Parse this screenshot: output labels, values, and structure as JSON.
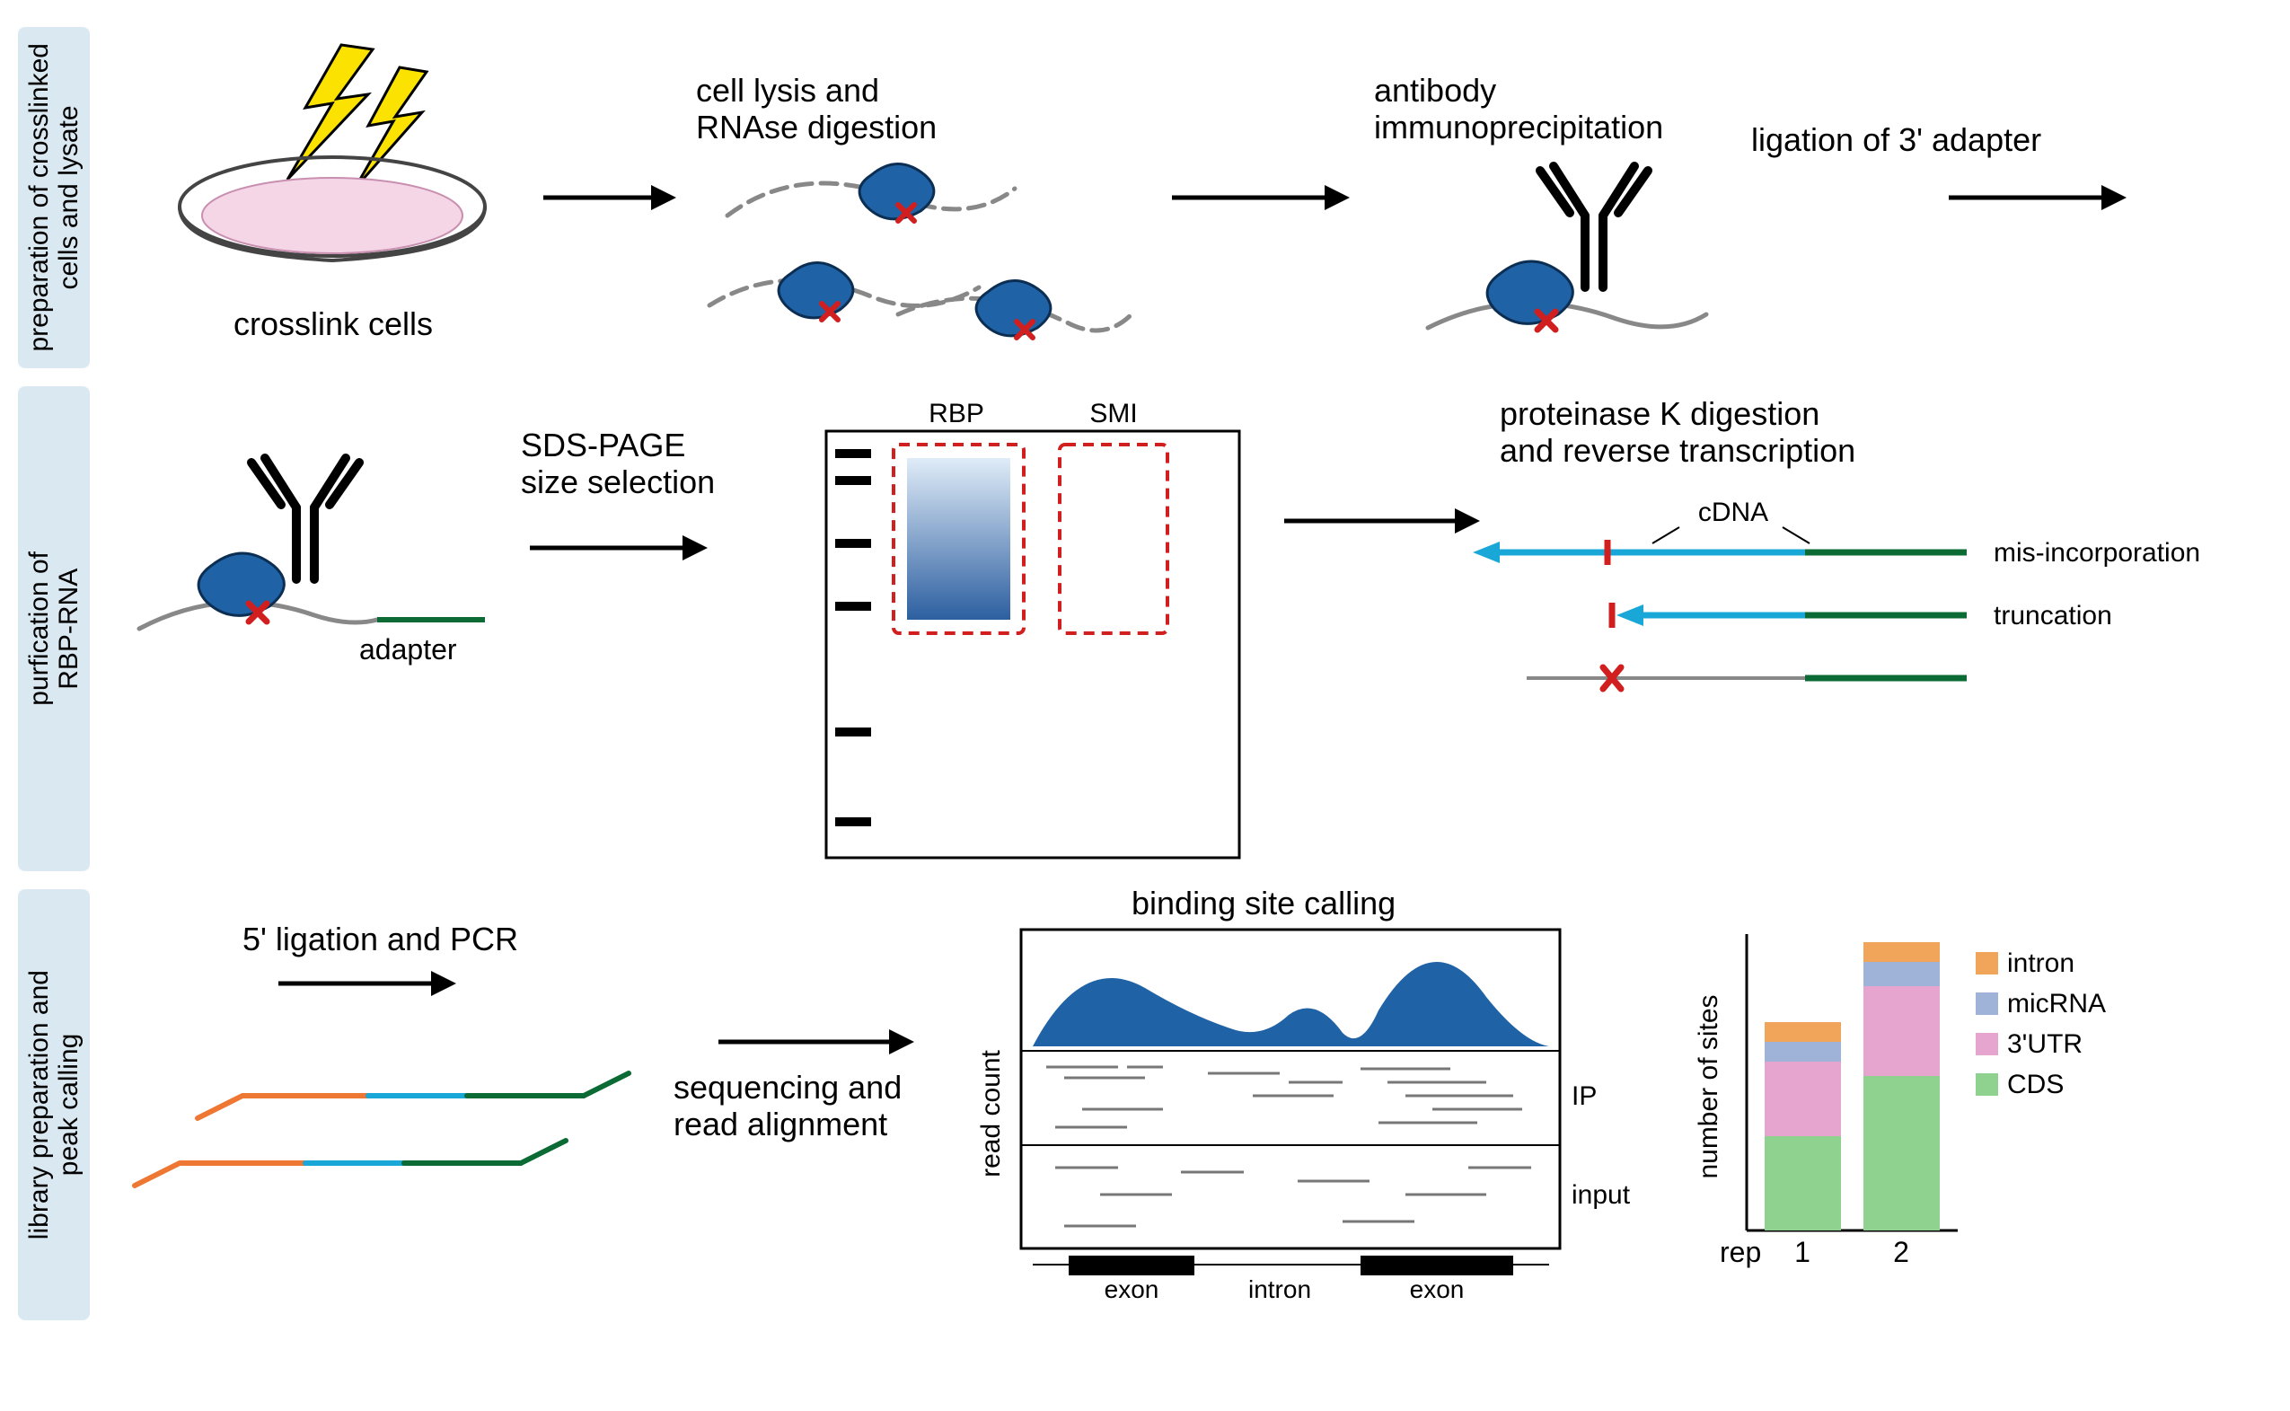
{
  "colors": {
    "side_label_bg": "#dae8f2",
    "text": "#000000",
    "arrow": "#000000",
    "dish_fill": "#f4d6e6",
    "dish_stroke": "#444444",
    "lightning": "#fbe200",
    "rna_strand": "#888888",
    "rbp_fill": "#1f62a6",
    "rbp_stroke": "#0b2e52",
    "crosslink_x": "#d11f1f",
    "antibody": "#000000",
    "adapter_green": "#0c6b34",
    "gel_band": "#3a6fb5",
    "gel_gradient_top": "#e0ecf8",
    "gel_dash": "#d11f1f",
    "cdna_cyan": "#19a7d8",
    "peak_fill": "#1f62a6",
    "read_line": "#777777",
    "exon": "#000000",
    "pcr_orange": "#ee7733",
    "bar_cds": "#8fd18f",
    "bar_3utr": "#e6a5ce",
    "bar_micrna": "#9fb3d8",
    "bar_intron": "#f0a55a"
  },
  "fonts": {
    "body_size": 36,
    "side_label_size": 30,
    "small_size": 28,
    "axis_label_size": 30
  },
  "row1": {
    "side_label": "preparation of crosslinked\ncells and lysate",
    "crosslink_label": "crosslink cells",
    "step1_label": "cell lysis and\nRNAse digestion",
    "step2_label": "antibody\nimmunoprecipitation",
    "step3_label": "ligation of 3' adapter"
  },
  "row2": {
    "side_label": "purfication of\nRBP-RNA",
    "adapter_label": "adapter",
    "sds_label": "SDS-PAGE\nsize selection",
    "gel_rbp": "RBP",
    "gel_smi": "SMI",
    "protk_label": "proteinase K digestion\nand reverse transcription",
    "cdna_label": "cDNA",
    "misinc_label": "mis-incorporation",
    "trunc_label": "truncation"
  },
  "row3": {
    "side_label": "library preparation and\npeak calling",
    "ligation_label": "5' ligation and PCR",
    "seq_label": "sequencing and\nread alignment",
    "binding_title": "binding site calling",
    "y_label": "read count",
    "ip_label": "IP",
    "input_label": "input",
    "exon_label": "exon",
    "intron_label": "intron",
    "bar_y_label": "number of sites",
    "rep_label": "rep",
    "rep_1": "1",
    "rep_2": "2",
    "legend_intron": "intron",
    "legend_micrna": "micRNA",
    "legend_3utr": "3'UTR",
    "legend_cds": "CDS",
    "stacked_bars": {
      "categories": [
        "1",
        "2"
      ],
      "segments": [
        "CDS",
        "3'UTR",
        "micRNA",
        "intron"
      ],
      "colors": [
        "#8fd18f",
        "#e6a5ce",
        "#9fb3d8",
        "#f0a55a"
      ],
      "values": [
        [
          95,
          75,
          20,
          20
        ],
        [
          155,
          90,
          25,
          20
        ]
      ],
      "ylim": [
        0,
        300
      ]
    }
  }
}
